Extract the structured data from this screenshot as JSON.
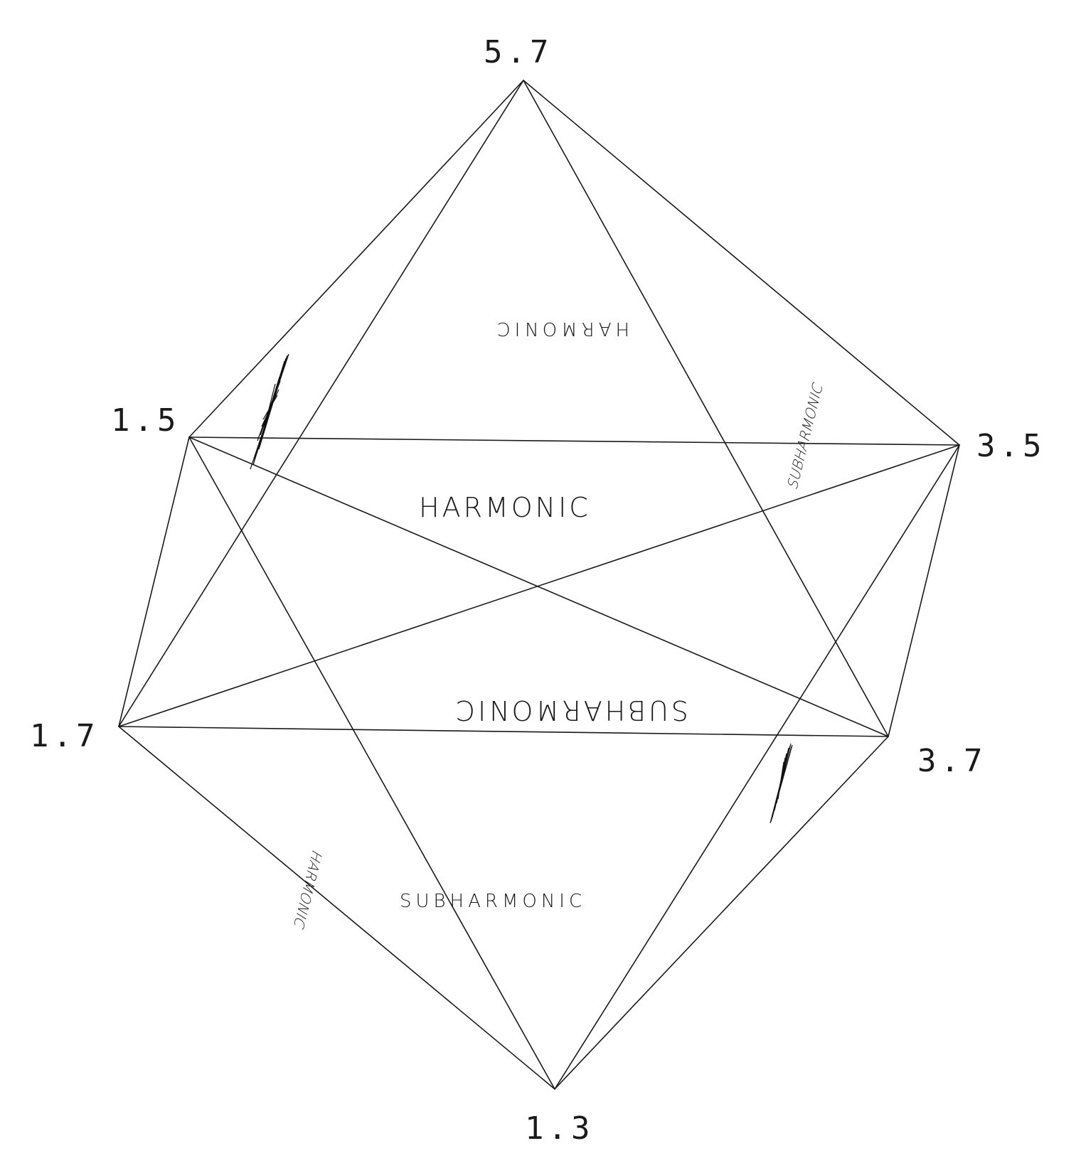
{
  "vertices": {
    "top": "5.7",
    "upper_left": "1.5",
    "upper_right": "3.5",
    "lower_left": "1.7",
    "lower_right": "3.7",
    "bottom": "1.3"
  },
  "faces": {
    "front_upper": "HARMONIC",
    "back_upper_mirrored": "HARMONIC",
    "back_middle_mirrored": "SUBHARMONIC",
    "front_lower": "SUBHARMONIC",
    "right_upper_side": "SUBHARMONIC",
    "left_lower_side_mirrored": "HARMONIC"
  },
  "colors": {
    "ink": "#1a1a1a",
    "paper": "#ffffff"
  }
}
